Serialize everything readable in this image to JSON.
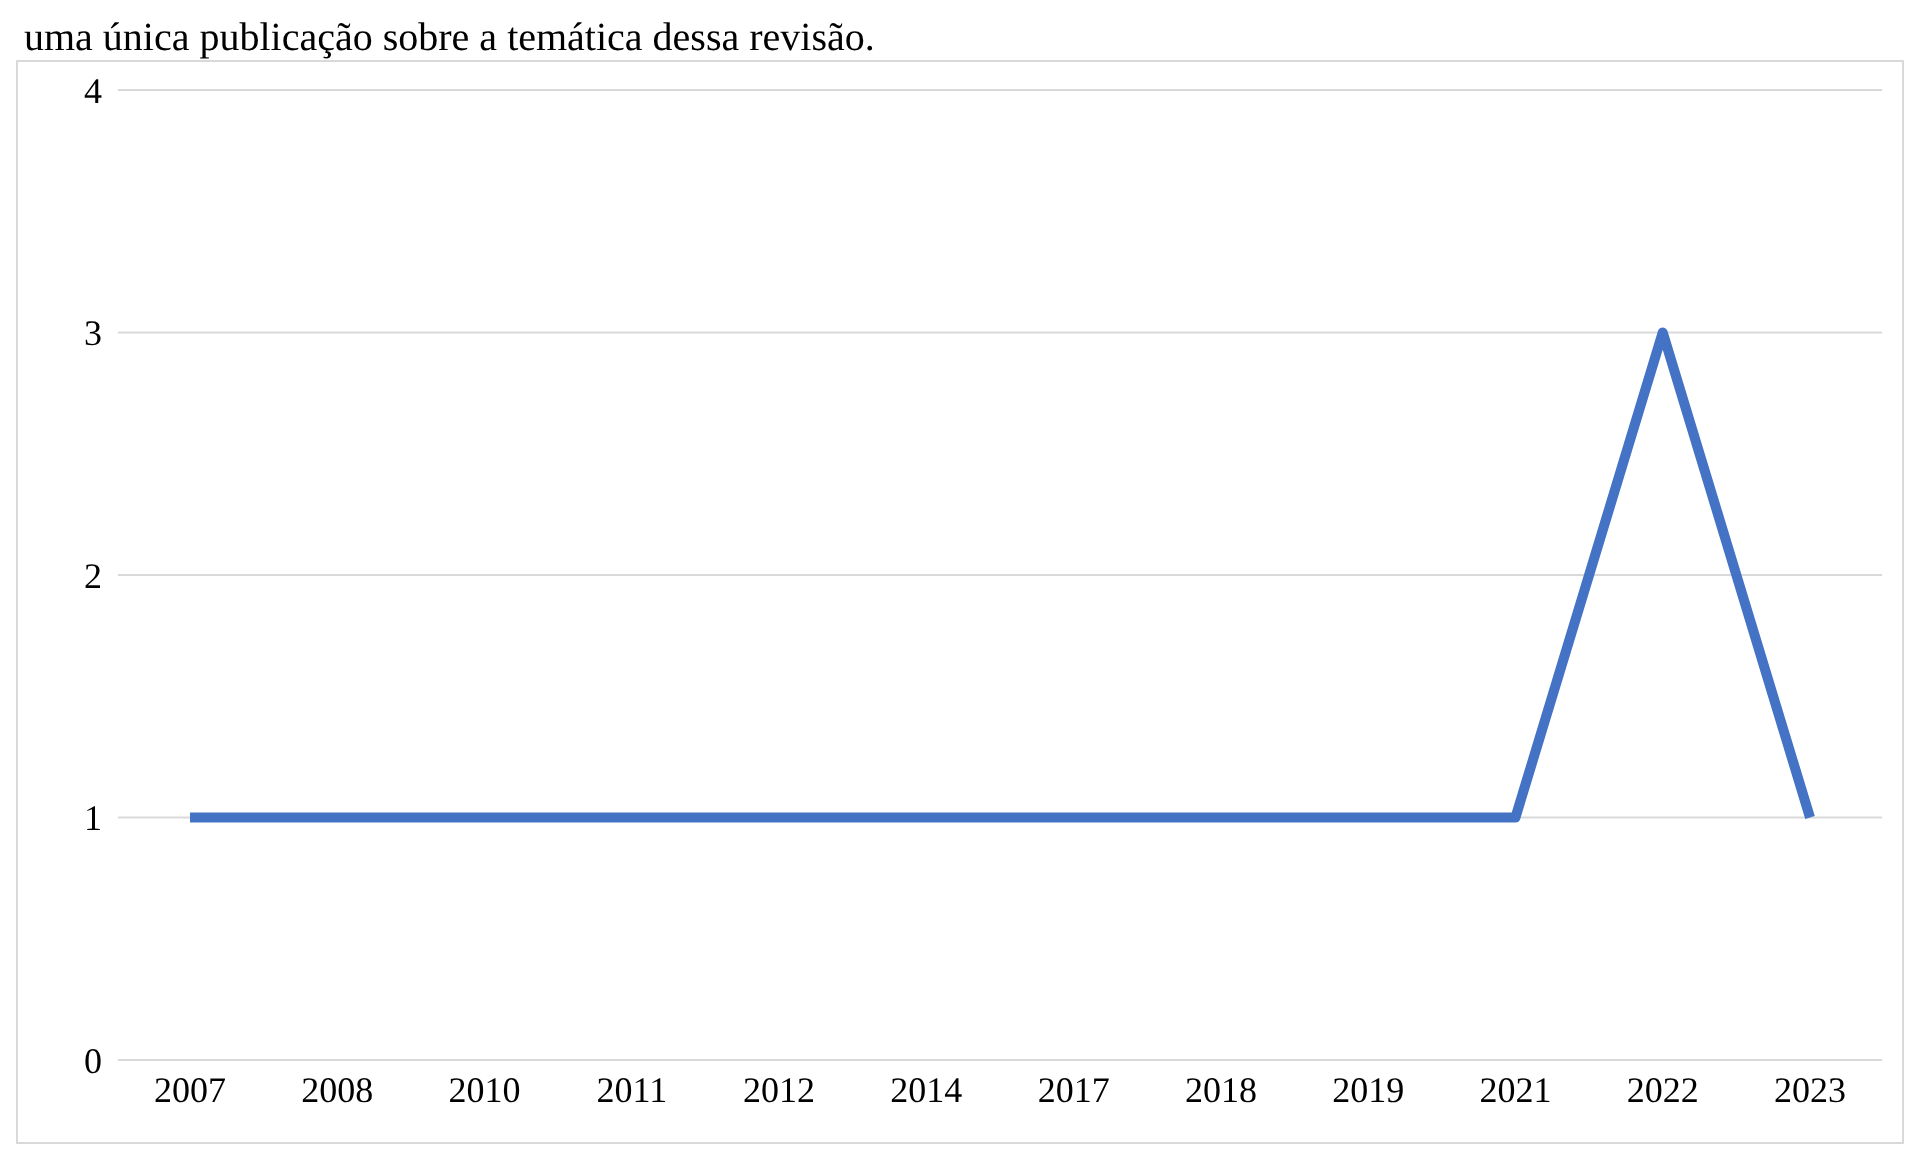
{
  "chart_data": {
    "type": "line",
    "annotations": [
      "uma única publicação sobre a temática dessa revisão."
    ],
    "categories": [
      "2007",
      "2008",
      "2010",
      "2011",
      "2012",
      "2014",
      "2017",
      "2018",
      "2019",
      "2021",
      "2022",
      "2023"
    ],
    "series": [
      {
        "color": "#4472c4",
        "values": [
          1,
          1,
          1,
          1,
          1,
          1,
          1,
          1,
          1,
          1,
          3,
          1
        ]
      }
    ],
    "ylim": [
      0,
      4
    ],
    "yticks": [
      0,
      1,
      2,
      3,
      4
    ],
    "grid": "y",
    "legend": false,
    "marker": "none",
    "line_style": "solid"
  }
}
